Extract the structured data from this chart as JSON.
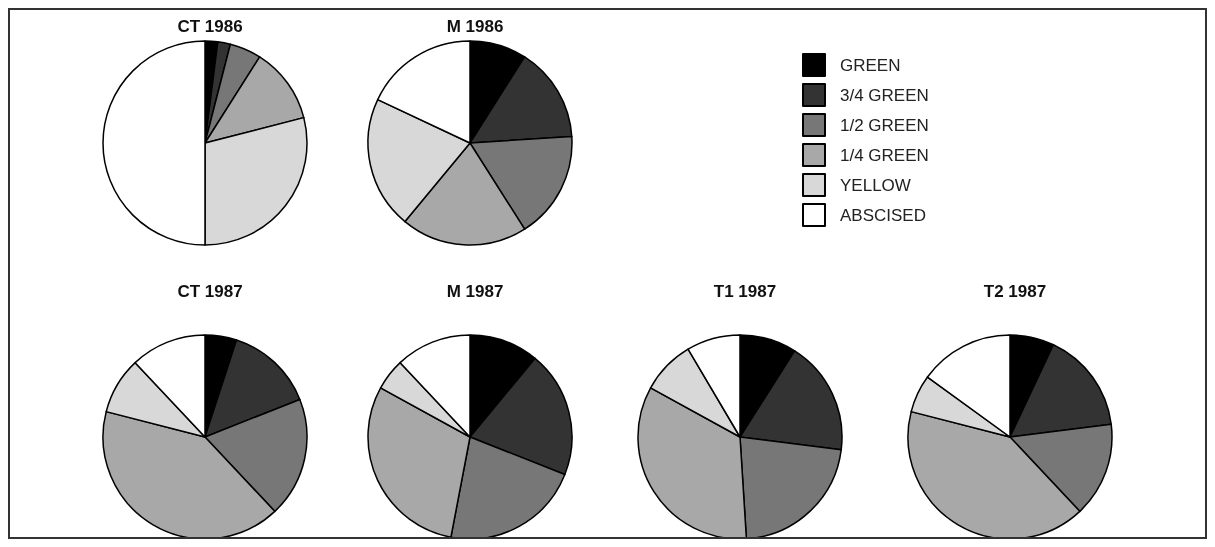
{
  "chart_data": {
    "type": "pie",
    "categories": [
      "GREEN",
      "3/4 GREEN",
      "1/2 GREEN",
      "1/4 GREEN",
      "YELLOW",
      "ABSCISED"
    ],
    "colors": [
      "#000000",
      "#333333",
      "#777777",
      "#a8a8a8",
      "#d8d8d8",
      "#ffffff"
    ],
    "legend": "right",
    "series": [
      {
        "name": "CT 1986",
        "values": [
          2,
          2,
          5,
          12,
          29,
          50
        ]
      },
      {
        "name": "M 1986",
        "values": [
          9,
          15,
          17,
          20,
          21,
          18
        ]
      },
      {
        "name": "CT 1987",
        "values": [
          5,
          14,
          19,
          41,
          9,
          12
        ]
      },
      {
        "name": "M 1987",
        "values": [
          11,
          20,
          22,
          30,
          5,
          12
        ]
      },
      {
        "name": "T1 1987",
        "values": [
          9,
          18,
          22,
          34,
          8.5,
          8.5
        ]
      },
      {
        "name": "T2 1987",
        "values": [
          7,
          16,
          15,
          41,
          6,
          15
        ]
      }
    ]
  }
}
